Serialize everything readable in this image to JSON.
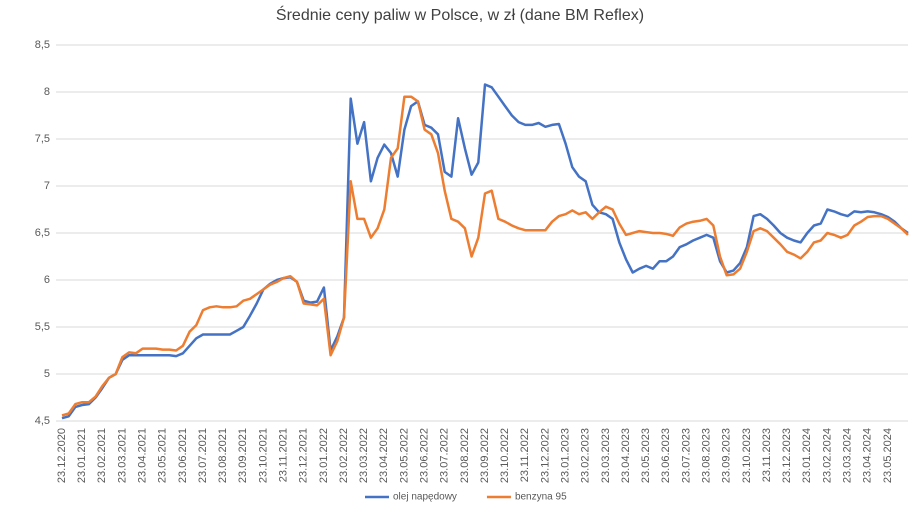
{
  "chart_data": {
    "type": "line",
    "title": "Średnie ceny paliw w Polsce, w zł (dane BM Reflex)",
    "categories": [
      "23.12.2020",
      null,
      null,
      "23.01.2021",
      null,
      null,
      "23.02.2021",
      null,
      null,
      "23.03.2021",
      null,
      null,
      "23.04.2021",
      null,
      null,
      "23.05.2021",
      null,
      null,
      "23.06.2021",
      null,
      null,
      "23.07.2021",
      null,
      null,
      "23.08.2021",
      null,
      null,
      "23.09.2021",
      null,
      null,
      "23.10.2021",
      null,
      null,
      "23.11.2021",
      null,
      null,
      "23.12.2021",
      null,
      null,
      "23.01.2022",
      null,
      null,
      "23.02.2022",
      null,
      null,
      "23.03.2022",
      null,
      null,
      "23.04.2022",
      null,
      null,
      "23.05.2022",
      null,
      null,
      "23.06.2022",
      null,
      null,
      "23.07.2022",
      null,
      null,
      "23.08.2022",
      null,
      null,
      "23.09.2022",
      null,
      null,
      "23.10.2022",
      null,
      null,
      "23.11.2022",
      null,
      null,
      "23.12.2022",
      null,
      null,
      "23.01.2023",
      null,
      null,
      "23.02.2023",
      null,
      null,
      "23.03.2023",
      null,
      null,
      "23.04.2023",
      null,
      null,
      "23.05.2023",
      null,
      null,
      "23.06.2023",
      null,
      null,
      "23.07.2023",
      null,
      null,
      "23.08.2023",
      null,
      null,
      "23.09.2023",
      null,
      null,
      "23.10.2023",
      null,
      null,
      "23.11.2023",
      null,
      null,
      "23.12.2023",
      null,
      null,
      "23.01.2024",
      null,
      null,
      "23.02.2024",
      null,
      null,
      "23.03.2024",
      null,
      null,
      "23.04.2024",
      null,
      null,
      "23.05.2024",
      null,
      null,
      null
    ],
    "series": [
      {
        "name": "olej napędowy",
        "color": "#4472c4",
        "values": [
          4.53,
          4.55,
          4.65,
          4.67,
          4.68,
          4.75,
          4.85,
          4.96,
          5.0,
          5.15,
          5.2,
          5.2,
          5.2,
          5.2,
          5.2,
          5.2,
          5.2,
          5.19,
          5.22,
          5.3,
          5.38,
          5.42,
          5.42,
          5.42,
          5.42,
          5.42,
          5.46,
          5.5,
          5.62,
          5.75,
          5.9,
          5.96,
          6.0,
          6.02,
          6.03,
          5.98,
          5.78,
          5.76,
          5.77,
          5.92,
          5.25,
          5.4,
          5.6,
          7.93,
          7.45,
          7.68,
          7.05,
          7.3,
          7.44,
          7.35,
          7.1,
          7.6,
          7.85,
          7.9,
          7.65,
          7.62,
          7.55,
          7.15,
          7.1,
          7.72,
          7.4,
          7.12,
          7.25,
          8.08,
          8.05,
          7.95,
          7.85,
          7.75,
          7.68,
          7.65,
          7.65,
          7.67,
          7.63,
          7.65,
          7.66,
          7.45,
          7.2,
          7.1,
          7.05,
          6.8,
          6.72,
          6.7,
          6.65,
          6.4,
          6.22,
          6.08,
          6.12,
          6.15,
          6.12,
          6.2,
          6.2,
          6.25,
          6.35,
          6.38,
          6.42,
          6.45,
          6.48,
          6.45,
          6.2,
          6.08,
          6.1,
          6.18,
          6.35,
          6.68,
          6.7,
          6.65,
          6.58,
          6.5,
          6.45,
          6.42,
          6.4,
          6.5,
          6.58,
          6.6,
          6.75,
          6.73,
          6.7,
          6.68,
          6.73,
          6.72,
          6.73,
          6.72,
          6.7,
          6.67,
          6.62,
          6.55,
          6.5
        ]
      },
      {
        "name": "benzyna 95",
        "color": "#ed7d31",
        "values": [
          4.56,
          4.58,
          4.68,
          4.7,
          4.7,
          4.76,
          4.87,
          4.96,
          5.0,
          5.18,
          5.23,
          5.22,
          5.27,
          5.27,
          5.27,
          5.26,
          5.26,
          5.25,
          5.3,
          5.45,
          5.52,
          5.68,
          5.71,
          5.72,
          5.71,
          5.71,
          5.72,
          5.78,
          5.8,
          5.85,
          5.9,
          5.95,
          5.98,
          6.02,
          6.04,
          5.98,
          5.75,
          5.74,
          5.73,
          5.8,
          5.2,
          5.35,
          5.6,
          7.05,
          6.65,
          6.65,
          6.45,
          6.55,
          6.75,
          7.3,
          7.4,
          7.95,
          7.95,
          7.9,
          7.6,
          7.55,
          7.35,
          6.95,
          6.65,
          6.62,
          6.55,
          6.25,
          6.45,
          6.92,
          6.95,
          6.65,
          6.62,
          6.58,
          6.55,
          6.53,
          6.53,
          6.53,
          6.53,
          6.62,
          6.68,
          6.7,
          6.74,
          6.7,
          6.72,
          6.65,
          6.72,
          6.78,
          6.75,
          6.6,
          6.48,
          6.5,
          6.52,
          6.51,
          6.5,
          6.5,
          6.49,
          6.47,
          6.56,
          6.6,
          6.62,
          6.63,
          6.65,
          6.58,
          6.25,
          6.05,
          6.06,
          6.12,
          6.3,
          6.52,
          6.55,
          6.52,
          6.45,
          6.38,
          6.3,
          6.27,
          6.23,
          6.3,
          6.4,
          6.42,
          6.5,
          6.48,
          6.45,
          6.48,
          6.58,
          6.62,
          6.67,
          6.68,
          6.68,
          6.65,
          6.6,
          6.55,
          6.48
        ]
      }
    ],
    "ylim": [
      4.5,
      8.5
    ],
    "yticks": [
      {
        "value": 4.5,
        "label": "4,5"
      },
      5,
      {
        "value": 5.5,
        "label": "5,5"
      },
      6,
      {
        "value": 6.5,
        "label": "6,5"
      },
      7,
      {
        "value": 7.5,
        "label": "7,5"
      },
      8,
      {
        "value": 8.5,
        "label": "8,5"
      }
    ],
    "grid": true,
    "legend": "bottom"
  }
}
